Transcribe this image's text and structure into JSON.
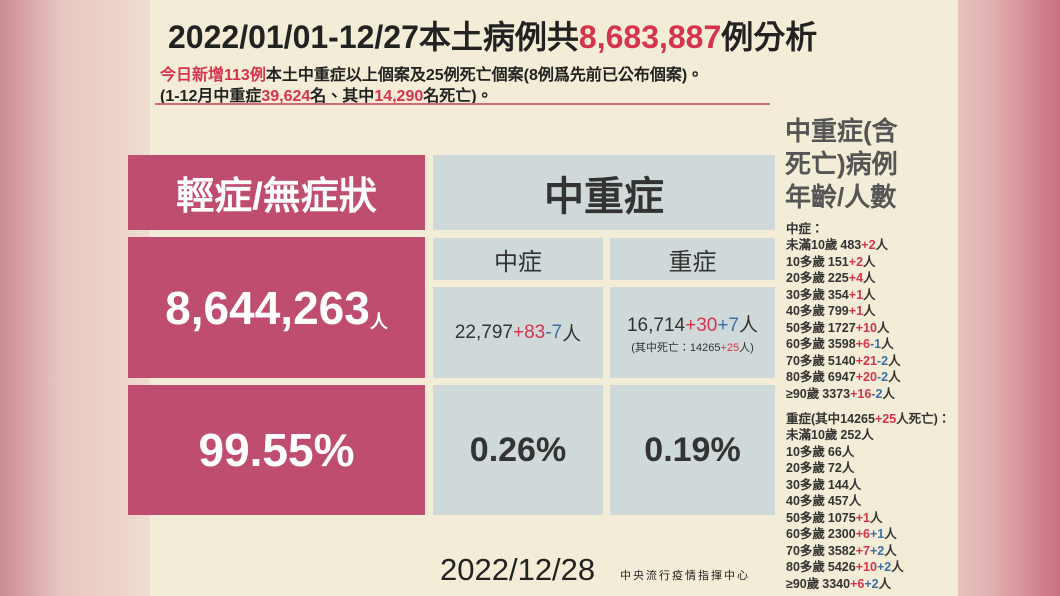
{
  "title": {
    "prefix": "2022/01/01-12/27本土病例共",
    "total": "8,683,887",
    "suffix": "例分析"
  },
  "subtitle": {
    "line1": {
      "highlight": "今日新增113例",
      "text": "本土中重症以上個案及25例死亡個案(8例爲先前已公布個案)。"
    },
    "line2": {
      "a": "(1-12月中重症",
      "b": "39,624",
      "c": "名、其中",
      "d": "14,290",
      "e": "名死亡)。"
    }
  },
  "table": {
    "mild": {
      "header": "輕症/無症狀",
      "count": "8,644,263",
      "unit": "人",
      "percent": "99.55%"
    },
    "severe_group": {
      "header": "中重症",
      "moderate": {
        "header": "中症",
        "base": "22,797",
        "plus": "+83",
        "minus": "-7",
        "unit": "人",
        "percent": "0.26%"
      },
      "severe": {
        "header": "重症",
        "base": "16,714",
        "plus": "+30",
        "extra": "+7",
        "unit": "人",
        "note": {
          "a": "(其中死亡：14265",
          "b": "+25",
          "c": "人)"
        },
        "percent": "0.19%"
      }
    }
  },
  "side": {
    "heading": [
      "中重症(含",
      "死亡)病例",
      "年齡/人數"
    ],
    "moderate": {
      "header": "中症：",
      "rows": [
        {
          "age": "未滿10歲",
          "base": "483",
          "red": "+2",
          "unit": "人"
        },
        {
          "age": "10多歲",
          "base": "151",
          "red": "+2",
          "unit": "人"
        },
        {
          "age": "20多歲",
          "base": "225",
          "red": "+4",
          "unit": "人"
        },
        {
          "age": "30多歲",
          "base": "354",
          "red": "+1",
          "unit": "人"
        },
        {
          "age": "40多歲",
          "base": "799",
          "red": "+1",
          "unit": "人"
        },
        {
          "age": "50多歲",
          "base": "1727",
          "red": "+10",
          "unit": "人"
        },
        {
          "age": "60多歲",
          "base": "3598",
          "red": "+6",
          "blue": "-1",
          "unit": "人"
        },
        {
          "age": "70多歲",
          "base": "5140",
          "red": "+21",
          "blue": "-2",
          "unit": "人"
        },
        {
          "age": "80多歲",
          "base": "6947",
          "red": "+20",
          "blue": "-2",
          "unit": "人"
        },
        {
          "age": "≥90歲",
          "base": "3373",
          "red": "+16",
          "blue": "-2",
          "unit": "人"
        }
      ]
    },
    "severe": {
      "header": {
        "a": "重症(其中14265",
        "b": "+25",
        "c": "人死亡)："
      },
      "rows": [
        {
          "age": "未滿10歲",
          "base": "252",
          "unit": "人"
        },
        {
          "age": "10多歲",
          "base": "66",
          "unit": "人"
        },
        {
          "age": "20多歲",
          "base": "72",
          "unit": "人"
        },
        {
          "age": "30多歲",
          "base": "144",
          "unit": "人"
        },
        {
          "age": "40多歲",
          "base": "457",
          "unit": "人"
        },
        {
          "age": "50多歲",
          "base": "1075",
          "red": "+1",
          "unit": "人"
        },
        {
          "age": "60多歲",
          "base": "2300",
          "red": "+6",
          "blue": "+1",
          "unit": "人"
        },
        {
          "age": "70多歲",
          "base": "3582",
          "red": "+7",
          "blue": "+2",
          "unit": "人"
        },
        {
          "age": "80多歲",
          "base": "5426",
          "red": "+10",
          "blue": "+2",
          "unit": "人"
        },
        {
          "age": "≥90歲",
          "base": "3340",
          "red": "+6",
          "blue": "+2",
          "unit": "人"
        }
      ]
    }
  },
  "footer": {
    "date": "2022/12/28",
    "org": "中央流行疫情指揮中心"
  }
}
